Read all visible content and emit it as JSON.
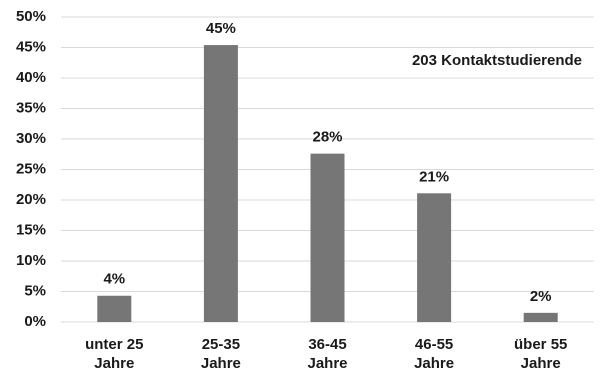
{
  "chart_data": {
    "type": "bar",
    "annotation": "203 Kontaktstudierende",
    "categories": [
      "unter 25 Jahre",
      "25-35 Jahre",
      "36-45 Jahre",
      "46-55 Jahre",
      "über 55 Jahre"
    ],
    "values": [
      4.3,
      45.4,
      27.6,
      21.1,
      1.5
    ],
    "value_labels": [
      "4%",
      "45%",
      "28%",
      "21%",
      "2%"
    ],
    "color": "#767676",
    "ylim": [
      0,
      50
    ],
    "yticks": [
      {
        "value": 0,
        "label": "0%"
      },
      {
        "value": 5,
        "label": "5%"
      },
      {
        "value": 10,
        "label": "10%"
      },
      {
        "value": 15,
        "label": "15%"
      },
      {
        "value": 20,
        "label": "20%"
      },
      {
        "value": 25,
        "label": "25%"
      },
      {
        "value": 30,
        "label": "30%"
      },
      {
        "value": 35,
        "label": "35%"
      },
      {
        "value": 40,
        "label": "40%"
      },
      {
        "value": 45,
        "label": "45%"
      },
      {
        "value": 50,
        "label": "50%"
      }
    ],
    "grid": true
  }
}
